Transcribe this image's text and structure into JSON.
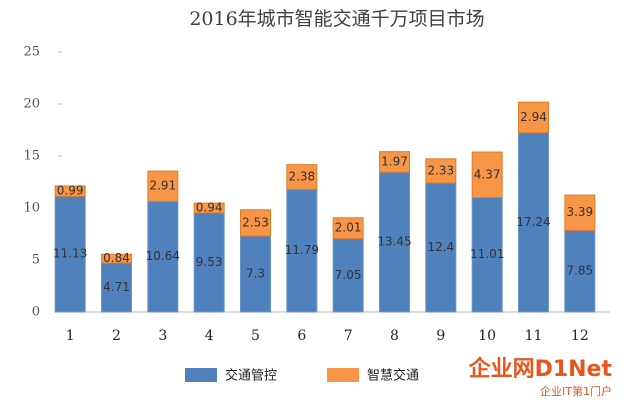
{
  "chart_data": {
    "type": "stacked_bar",
    "title": "2016年城市智能交通千万项目市场",
    "categories": [
      "1",
      "2",
      "3",
      "4",
      "5",
      "6",
      "7",
      "8",
      "9",
      "10",
      "11",
      "12"
    ],
    "series": [
      {
        "name": "交通管控",
        "color": "#4f81bd",
        "values": [
          11.13,
          4.71,
          10.64,
          9.53,
          7.3,
          11.79,
          7.05,
          13.45,
          12.4,
          11.01,
          17.24,
          7.85
        ]
      },
      {
        "name": "智慧交通",
        "color": "#f79646",
        "values": [
          0.99,
          0.84,
          2.91,
          0.94,
          2.53,
          2.38,
          2.01,
          1.97,
          2.33,
          4.37,
          2.94,
          3.39
        ]
      }
    ],
    "ylim": [
      0,
      25
    ],
    "yticks": [
      0,
      5,
      10,
      15,
      20,
      25
    ],
    "grid": false,
    "legend": "bottom"
  },
  "watermark": {
    "logo": "企业网D1Net",
    "slogan": "企业IT第1门户"
  }
}
